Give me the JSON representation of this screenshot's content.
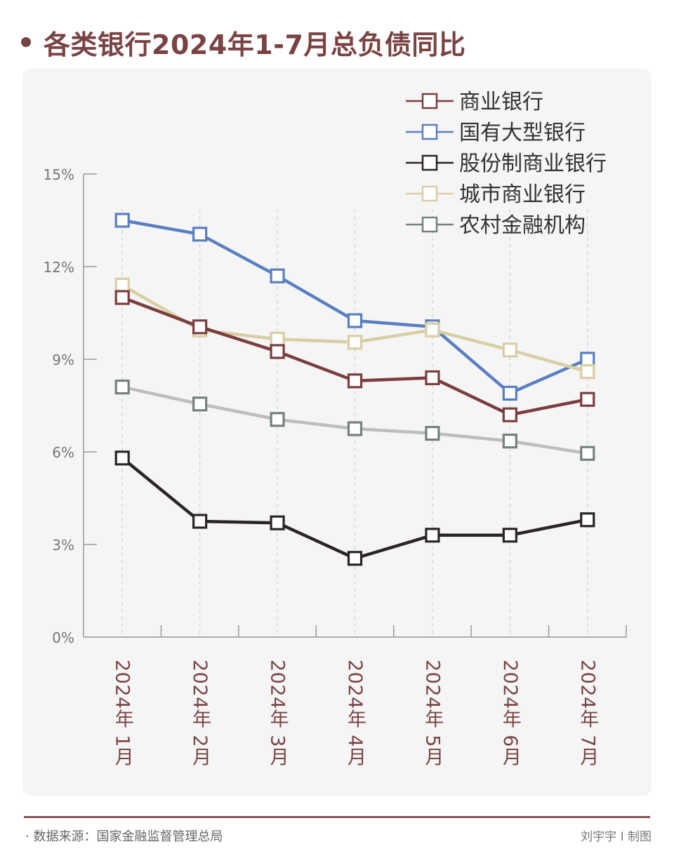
{
  "header": {
    "title": "各类银行2024年1-7月总负债同比"
  },
  "footer": {
    "source": "· 数据来源：国家金融监督管理总局",
    "credit": "刘宇宇 I 制图"
  },
  "chart_data": {
    "type": "line",
    "title": "各类银行2024年1-7月总负债同比",
    "xlabel": "",
    "ylabel": "",
    "categories": [
      "2024年 1月",
      "2024年 2月",
      "2024年 3月",
      "2024年 4月",
      "2024年 5月",
      "2024年 6月",
      "2024年 7月"
    ],
    "yticks": [
      "0%",
      "3%",
      "6%",
      "9%",
      "12%",
      "15%"
    ],
    "ytick_values": [
      0,
      3,
      6,
      9,
      12,
      15
    ],
    "ylim": [
      0,
      15
    ],
    "grid": "vertical dashed lines at categories",
    "legend_position": "top-right",
    "marker": "hollow-square",
    "series": [
      {
        "name": "商业银行",
        "color": "#7b3e3e",
        "marker_color": "#7b3e3e",
        "values": [
          11.0,
          10.05,
          9.25,
          8.3,
          8.4,
          7.2,
          7.7
        ]
      },
      {
        "name": "国有大型银行",
        "color": "#5a7fc1",
        "marker_color": "#5a7fc1",
        "values": [
          13.5,
          13.05,
          11.7,
          10.25,
          10.05,
          7.9,
          9.0
        ]
      },
      {
        "name": "股份制商业银行",
        "color": "#2a2428",
        "marker_color": "#2a2428",
        "values": [
          5.8,
          3.75,
          3.7,
          2.55,
          3.3,
          3.3,
          3.8
        ]
      },
      {
        "name": "城市商业银行",
        "color": "#d8cea6",
        "marker_color": "#d8cea6",
        "values": [
          11.4,
          9.95,
          9.65,
          9.55,
          9.95,
          9.3,
          8.6
        ]
      },
      {
        "name": "农村金融机构",
        "color": "#bdbdbd",
        "marker_color": "#76807c",
        "values": [
          8.1,
          7.55,
          7.05,
          6.75,
          6.6,
          6.35,
          5.95
        ]
      }
    ]
  }
}
